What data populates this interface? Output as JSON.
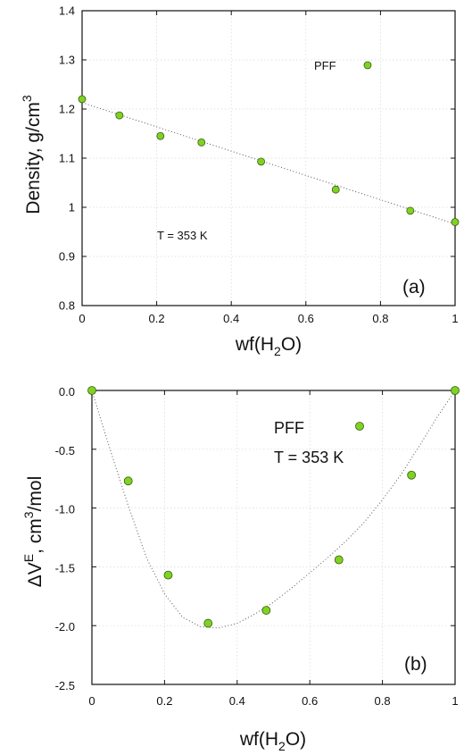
{
  "chart_data": [
    {
      "type": "scatter",
      "panel_label": "(a)",
      "xlabel": "wf(H2O)",
      "xlabel_main": "wf(H",
      "xlabel_sub": "2",
      "xlabel_end": "O)",
      "ylabel": "Density, g/cm3",
      "ylabel_main": "Density, g/cm",
      "ylabel_sup": "3",
      "xlim": [
        0,
        1
      ],
      "ylim": [
        0.8,
        1.4
      ],
      "xticks": [
        "0",
        "0.2",
        "0.4",
        "0.6",
        "0.8",
        "1"
      ],
      "yticks": [
        "0.8",
        "0.9",
        "1",
        "1.1",
        "1.2",
        "1.3",
        "1.4"
      ],
      "grid": true,
      "legend": "PFF",
      "annotation": "T = 353 K",
      "marker_color": "#7ed321",
      "series": [
        {
          "name": "PFF",
          "x": [
            0,
            0.1,
            0.21,
            0.32,
            0.48,
            0.68,
            0.88,
            1.0
          ],
          "y": [
            1.22,
            1.187,
            1.145,
            1.132,
            1.093,
            1.036,
            0.993,
            0.97
          ]
        }
      ],
      "fit_line": {
        "x": [
          0,
          1
        ],
        "y": [
          1.213,
          0.966
        ]
      }
    },
    {
      "type": "scatter",
      "panel_label": "(b)",
      "xlabel": "wf(H2O)",
      "xlabel_main": "wf(H",
      "xlabel_sub": "2",
      "xlabel_end": "O)",
      "ylabel": "ΔVE, cm3/mol",
      "ylabel_main": "ΔV",
      "ylabel_sup1": "E",
      "ylabel_mid": ", cm",
      "ylabel_sup2": "3",
      "ylabel_end": "/mol",
      "xlim": [
        0,
        1
      ],
      "ylim": [
        -2.5,
        0
      ],
      "xticks": [
        "0",
        "0.2",
        "0.4",
        "0.6",
        "0.8",
        "1"
      ],
      "yticks": [
        "-2.5",
        "-2.0",
        "-1.5",
        "-1.0",
        "-0.5",
        "0.0"
      ],
      "grid": true,
      "legend": "PFF",
      "annotation": "T = 353 K",
      "marker_color": "#7ed321",
      "series": [
        {
          "name": "PFF",
          "x": [
            0,
            0.1,
            0.21,
            0.32,
            0.48,
            0.68,
            0.88,
            1.0
          ],
          "y": [
            0.0,
            -0.77,
            -1.57,
            -1.98,
            -1.87,
            -1.44,
            -0.72,
            0.0
          ]
        }
      ],
      "fit_curve": {
        "x": [
          0,
          0.05,
          0.1,
          0.15,
          0.2,
          0.25,
          0.3,
          0.35,
          0.4,
          0.45,
          0.5,
          0.55,
          0.6,
          0.65,
          0.7,
          0.75,
          0.8,
          0.85,
          0.9,
          0.95,
          1.0
        ],
        "y": [
          0.0,
          -0.5,
          -0.98,
          -1.42,
          -1.73,
          -1.93,
          -2.01,
          -2.02,
          -1.98,
          -1.9,
          -1.8,
          -1.68,
          -1.55,
          -1.42,
          -1.28,
          -1.12,
          -0.93,
          -0.72,
          -0.48,
          -0.23,
          0.0
        ]
      }
    }
  ]
}
